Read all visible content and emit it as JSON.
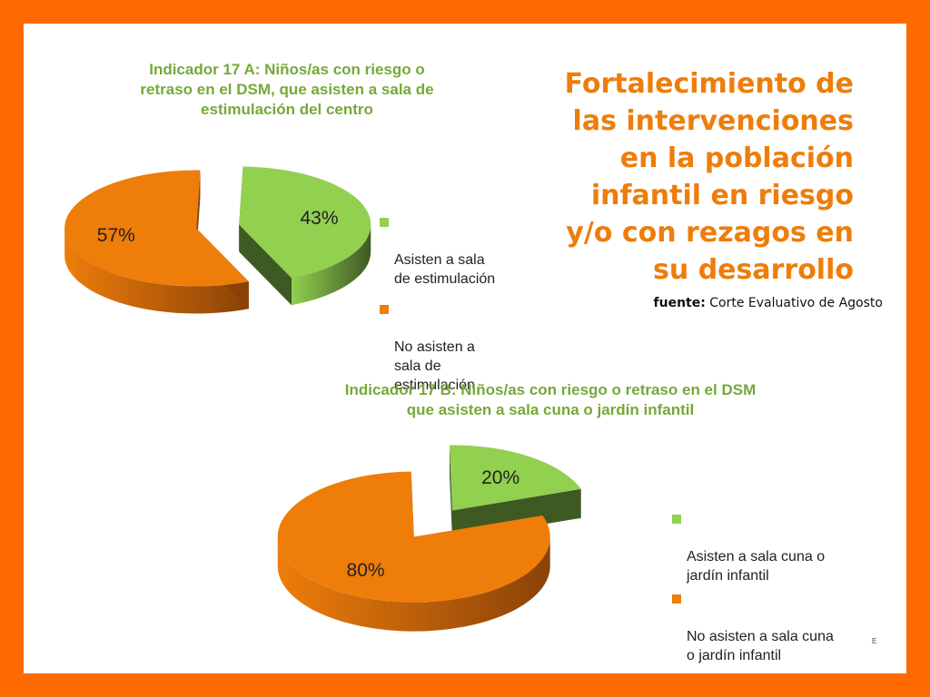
{
  "headline": "Fortalecimiento de\nlas intervenciones\nen la población\ninfantil en riesgo\ny/o con rezagos en\nsu desarrollo",
  "source": {
    "label": "fuente:",
    "text": "Corte Evaluativo de Agosto"
  },
  "footnote": "E",
  "colors": {
    "green": "#92d050",
    "orange": "#ee7d0a",
    "frame": "#ff6a00",
    "title_green": "#76a83a"
  },
  "chart_data": [
    {
      "type": "pie",
      "title": "Indicador 17 A: Niños/as con riesgo o\nretraso en el DSM, que asisten a sala de\nestimulación del centro",
      "categories": [
        "Asisten a sala\nde estimulación",
        "No asisten a\nsala de\nestimulación"
      ],
      "values": [
        43,
        57
      ],
      "labels": [
        "43%",
        "57%"
      ],
      "legend": "right"
    },
    {
      "type": "pie",
      "title": "Indicador 17 B: Niños/as con riesgo o retraso en el DSM\nque asisten a sala cuna o jardín infantil",
      "categories": [
        "Asisten a sala cuna o\njardín infantil",
        "No asisten a sala cuna\no jardín infantil"
      ],
      "values": [
        20,
        80
      ],
      "labels": [
        "20%",
        "80%"
      ],
      "legend": "right"
    }
  ]
}
